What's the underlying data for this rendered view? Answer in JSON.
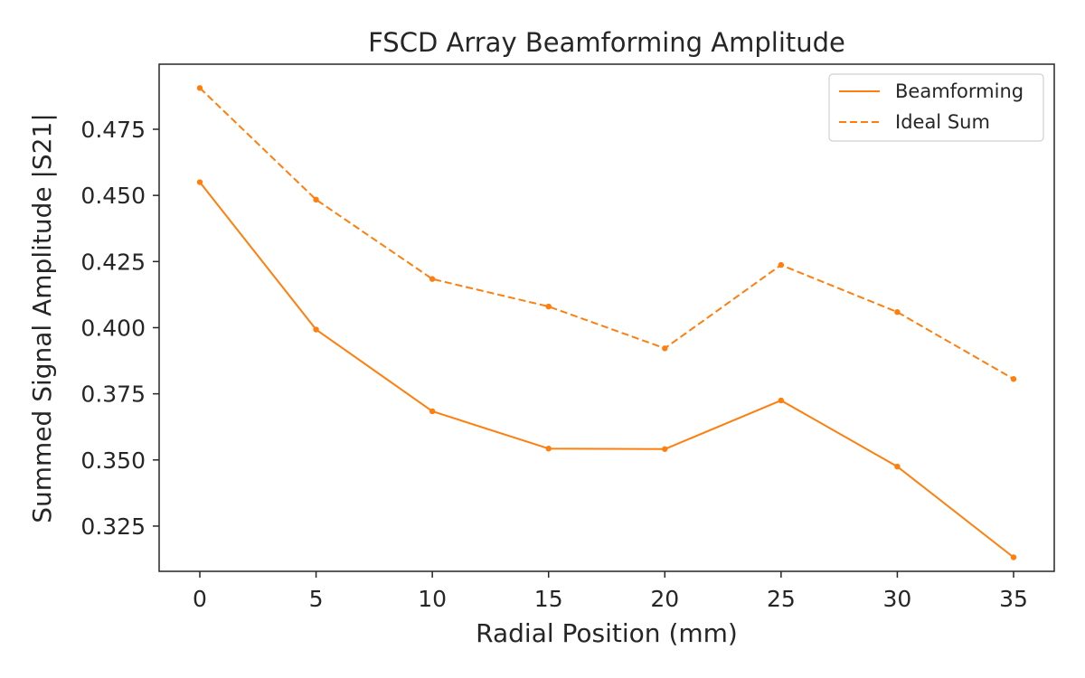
{
  "chart_data": {
    "type": "line",
    "title": "FSCD Array Beamforming Amplitude",
    "xlabel": "Radial Position (mm)",
    "ylabel": "Summed Signal Amplitude |S21|",
    "x": [
      0,
      5,
      10,
      15,
      20,
      25,
      30,
      35
    ],
    "xlim": [
      -1.75,
      36.75
    ],
    "ylim": [
      0.3079,
      0.4996
    ],
    "xticks": [
      "0",
      "5",
      "10",
      "15",
      "20",
      "25",
      "30",
      "35"
    ],
    "yticks": [
      "0.325",
      "0.350",
      "0.375",
      "0.400",
      "0.425",
      "0.450",
      "0.475"
    ],
    "grid": false,
    "legend_position": "top-right",
    "series": [
      {
        "name": "Beamforming",
        "style": "solid",
        "color": "#ff7f0e",
        "values": [
          0.455,
          0.3993,
          0.3684,
          0.3543,
          0.3541,
          0.3725,
          0.3475,
          0.3132
        ]
      },
      {
        "name": "Ideal Sum",
        "style": "dashed",
        "color": "#ff7f0e",
        "values": [
          0.4906,
          0.4484,
          0.4184,
          0.408,
          0.3922,
          0.4237,
          0.4059,
          0.3806
        ]
      }
    ]
  }
}
